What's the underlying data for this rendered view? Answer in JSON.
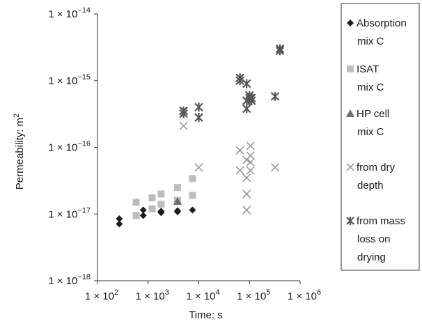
{
  "chart_data": {
    "type": "scatter",
    "xlabel": "Time: s",
    "ylabel": "Permeability: m",
    "ylabel_superscript": "2",
    "x_scale": "log",
    "y_scale": "log",
    "xlim": [
      100,
      1000000
    ],
    "ylim": [
      1e-18,
      1e-14
    ],
    "x_ticks": [
      {
        "value": 100,
        "mantissa": "1 × 10",
        "exp": "2"
      },
      {
        "value": 1000,
        "mantissa": "1 × 10",
        "exp": "3"
      },
      {
        "value": 10000,
        "mantissa": "1 × 10",
        "exp": "4"
      },
      {
        "value": 100000,
        "mantissa": "1 × 10",
        "exp": "5"
      },
      {
        "value": 1000000,
        "mantissa": "1 × 10",
        "exp": "6"
      }
    ],
    "y_ticks": [
      {
        "value": 1e-18,
        "mantissa": "1 × 10",
        "exp": "−18"
      },
      {
        "value": 1e-17,
        "mantissa": "1 × 10",
        "exp": "−17"
      },
      {
        "value": 1e-16,
        "mantissa": "1 × 10",
        "exp": "−16"
      },
      {
        "value": 1e-15,
        "mantissa": "1 × 10",
        "exp": "−15"
      },
      {
        "value": 1e-14,
        "mantissa": "1 × 10",
        "exp": "−14"
      }
    ],
    "grid": false,
    "legend_position": "right",
    "series": [
      {
        "name_lines": [
          "Absorption",
          "mix C"
        ],
        "marker": "diamond",
        "color": "#1e1e1e",
        "points": [
          [
            270,
            8.5e-18
          ],
          [
            270,
            7.1e-18
          ],
          [
            800,
            1.15e-17
          ],
          [
            800,
            9.5e-18
          ],
          [
            1800,
            1.1e-17
          ],
          [
            1800,
            1.05e-17
          ],
          [
            3800,
            1.12e-17
          ],
          [
            3800,
            1.08e-17
          ],
          [
            7500,
            1.15e-17
          ]
        ]
      },
      {
        "name_lines": [
          "ISAT",
          "mix C"
        ],
        "marker": "square",
        "color": "#bdbdbd",
        "points": [
          [
            580,
            1.5e-17
          ],
          [
            580,
            9.5e-18
          ],
          [
            1200,
            1.75e-17
          ],
          [
            1200,
            1.2e-17
          ],
          [
            1800,
            2e-17
          ],
          [
            1800,
            1.4e-17
          ],
          [
            3800,
            2.5e-17
          ],
          [
            3800,
            1.6e-17
          ],
          [
            7500,
            3.4e-17
          ],
          [
            7500,
            1.9e-17
          ]
        ]
      },
      {
        "name_lines": [
          "HP cell",
          "mix C"
        ],
        "marker": "triangle",
        "color": "#6e6e6e",
        "points": [
          [
            3800,
            1.55e-17
          ]
        ]
      },
      {
        "name_lines": [
          "from dry",
          "depth"
        ],
        "marker": "x",
        "color": "#9a9a9a",
        "points": [
          [
            5000,
            3.6e-16
          ],
          [
            5000,
            2.1e-16
          ],
          [
            10000,
            5e-17
          ],
          [
            65000,
            9e-17
          ],
          [
            65000,
            4.5e-17
          ],
          [
            88000,
            6.5e-17
          ],
          [
            88000,
            3.5e-17
          ],
          [
            88000,
            2e-17
          ],
          [
            88000,
            1.15e-17
          ],
          [
            105000,
            1.05e-16
          ],
          [
            105000,
            7.5e-17
          ],
          [
            105000,
            6e-17
          ],
          [
            105000,
            4.5e-17
          ],
          [
            320000,
            5e-17
          ]
        ]
      },
      {
        "name_lines": [
          "from mass",
          "loss on",
          "drying"
        ],
        "marker": "asterisk",
        "color": "#555555",
        "points": [
          [
            5000,
            3.5e-16
          ],
          [
            5000,
            3.2e-16
          ],
          [
            10000,
            4e-16
          ],
          [
            10000,
            2.8e-16
          ],
          [
            65000,
            1.1e-15
          ],
          [
            65000,
            1e-15
          ],
          [
            88000,
            9e-16
          ],
          [
            88000,
            5e-16
          ],
          [
            88000,
            3.8e-16
          ],
          [
            100000,
            6e-16
          ],
          [
            100000,
            5.5e-16
          ],
          [
            110000,
            5.5e-16
          ],
          [
            110000,
            5e-16
          ],
          [
            320000,
            5.8e-16
          ],
          [
            400000,
            3e-15
          ],
          [
            400000,
            2.8e-15
          ]
        ]
      }
    ]
  }
}
